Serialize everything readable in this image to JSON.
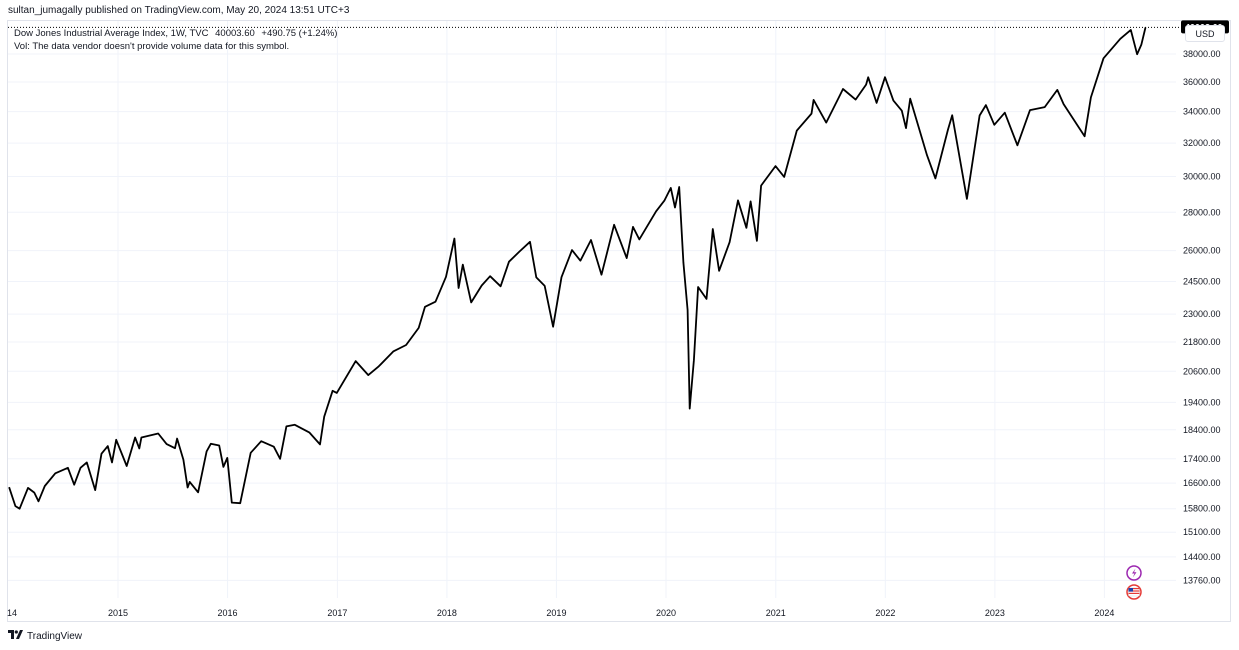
{
  "publisher_line": "sultan_jumagally published on TradingView.com, May 20, 2024 13:51 UTC+3",
  "legend": {
    "symbol_line": "Dow Jones Industrial Average Index, 1W, TVC",
    "last": "40003.60",
    "change": "+490.75 (+1.24%)",
    "volume_line": "Vol: The data vendor doesn't provide volume data for this symbol."
  },
  "currency_button": "USD",
  "footer_brand": "TradingView",
  "icons": {
    "lightning": "lightning-icon",
    "flag": "us-flag-icon",
    "logo": "tradingview-logo-icon"
  },
  "colors": {
    "line": "#000000",
    "grid": "#f0f3fa",
    "price_badge": "#000000"
  },
  "chart_data": {
    "type": "line",
    "scale": "log",
    "title": "Dow Jones Industrial Average Index, 1W, TVC",
    "xlabel": "",
    "ylabel": "",
    "x_ticks": [
      "14",
      "2015",
      "2016",
      "2017",
      "2018",
      "2019",
      "2020",
      "2021",
      "2022",
      "2023",
      "2024"
    ],
    "y_ticks": [
      "13760.00",
      "14400.00",
      "15100.00",
      "15800.00",
      "16600.00",
      "17400.00",
      "18400.00",
      "19400.00",
      "20600.00",
      "21800.00",
      "23000.00",
      "24500.00",
      "26000.00",
      "28000.00",
      "30000.00",
      "32000.00",
      "34000.00",
      "36000.00",
      "38000.00"
    ],
    "last_value_label": "40003.60",
    "ylim": [
      13300,
      40500
    ],
    "grid": true,
    "series": [
      {
        "values": [
          [
            "2014-01-03",
            16470
          ],
          [
            "2014-01-24",
            15880
          ],
          [
            "2014-02-07",
            15800
          ],
          [
            "2014-03-07",
            16450
          ],
          [
            "2014-03-28",
            16300
          ],
          [
            "2014-04-11",
            16030
          ],
          [
            "2014-05-02",
            16510
          ],
          [
            "2014-06-06",
            16920
          ],
          [
            "2014-07-18",
            17100
          ],
          [
            "2014-08-08",
            16550
          ],
          [
            "2014-08-29",
            17100
          ],
          [
            "2014-09-19",
            17280
          ],
          [
            "2014-10-17",
            16380
          ],
          [
            "2014-11-07",
            17570
          ],
          [
            "2014-11-28",
            17830
          ],
          [
            "2014-12-12",
            17280
          ],
          [
            "2014-12-26",
            18050
          ],
          [
            "2015-01-16",
            17510
          ],
          [
            "2015-01-30",
            17160
          ],
          [
            "2015-02-27",
            18130
          ],
          [
            "2015-03-13",
            17750
          ],
          [
            "2015-03-20",
            18130
          ],
          [
            "2015-05-15",
            18270
          ],
          [
            "2015-06-12",
            17900
          ],
          [
            "2015-07-10",
            17760
          ],
          [
            "2015-07-17",
            18090
          ],
          [
            "2015-08-07",
            17370
          ],
          [
            "2015-08-21",
            16460
          ],
          [
            "2015-08-28",
            16640
          ],
          [
            "2015-09-25",
            16310
          ],
          [
            "2015-10-23",
            17650
          ],
          [
            "2015-11-06",
            17910
          ],
          [
            "2015-12-04",
            17850
          ],
          [
            "2015-12-18",
            17130
          ],
          [
            "2015-12-31",
            17430
          ],
          [
            "2016-01-15",
            15990
          ],
          [
            "2016-02-12",
            15970
          ],
          [
            "2016-03-18",
            17600
          ],
          [
            "2016-04-22",
            18000
          ],
          [
            "2016-06-03",
            17810
          ],
          [
            "2016-06-24",
            17400
          ],
          [
            "2016-07-15",
            18520
          ],
          [
            "2016-08-12",
            18580
          ],
          [
            "2016-09-30",
            18300
          ],
          [
            "2016-11-04",
            17890
          ],
          [
            "2016-11-18",
            18870
          ],
          [
            "2016-12-16",
            19840
          ],
          [
            "2016-12-30",
            19760
          ],
          [
            "2017-03-03",
            21010
          ],
          [
            "2017-04-14",
            20450
          ],
          [
            "2017-05-19",
            20800
          ],
          [
            "2017-07-07",
            21410
          ],
          [
            "2017-08-18",
            21670
          ],
          [
            "2017-09-29",
            22400
          ],
          [
            "2017-10-20",
            23330
          ],
          [
            "2017-11-24",
            23560
          ],
          [
            "2017-12-29",
            24720
          ],
          [
            "2018-01-26",
            26610
          ],
          [
            "2018-02-09",
            24190
          ],
          [
            "2018-02-23",
            25310
          ],
          [
            "2018-03-23",
            23530
          ],
          [
            "2018-04-27",
            24310
          ],
          [
            "2018-05-25",
            24750
          ],
          [
            "2018-06-29",
            24270
          ],
          [
            "2018-07-27",
            25450
          ],
          [
            "2018-08-31",
            25960
          ],
          [
            "2018-10-05",
            26450
          ],
          [
            "2018-10-26",
            24690
          ],
          [
            "2018-11-23",
            24290
          ],
          [
            "2018-12-21",
            22450
          ],
          [
            "2019-01-18",
            24700
          ],
          [
            "2019-02-22",
            26030
          ],
          [
            "2019-03-22",
            25500
          ],
          [
            "2019-04-26",
            26540
          ],
          [
            "2019-05-31",
            24820
          ],
          [
            "2019-07-12",
            27330
          ],
          [
            "2019-08-23",
            25630
          ],
          [
            "2019-09-13",
            27220
          ],
          [
            "2019-10-04",
            26570
          ],
          [
            "2019-11-29",
            28050
          ],
          [
            "2019-12-27",
            28650
          ],
          [
            "2020-01-17",
            29350
          ],
          [
            "2020-01-31",
            28260
          ],
          [
            "2020-02-14",
            29400
          ],
          [
            "2020-02-28",
            25410
          ],
          [
            "2020-03-13",
            23190
          ],
          [
            "2020-03-20",
            19170
          ],
          [
            "2020-04-03",
            21050
          ],
          [
            "2020-04-17",
            24240
          ],
          [
            "2020-05-15",
            23690
          ],
          [
            "2020-06-05",
            27110
          ],
          [
            "2020-06-26",
            25010
          ],
          [
            "2020-07-31",
            26430
          ],
          [
            "2020-08-28",
            28650
          ],
          [
            "2020-09-25",
            27170
          ],
          [
            "2020-10-09",
            28590
          ],
          [
            "2020-10-30",
            26500
          ],
          [
            "2020-11-13",
            29480
          ],
          [
            "2020-12-31",
            30610
          ],
          [
            "2021-01-29",
            29980
          ],
          [
            "2021-03-12",
            32780
          ],
          [
            "2021-04-30",
            33870
          ],
          [
            "2021-05-07",
            34780
          ],
          [
            "2021-06-18",
            33290
          ],
          [
            "2021-07-30",
            34940
          ],
          [
            "2021-08-13",
            35520
          ],
          [
            "2021-09-24",
            34800
          ],
          [
            "2021-10-29",
            35820
          ],
          [
            "2021-11-05",
            36330
          ],
          [
            "2021-12-03",
            34580
          ],
          [
            "2021-12-31",
            36340
          ],
          [
            "2022-01-28",
            34730
          ],
          [
            "2022-02-25",
            34060
          ],
          [
            "2022-03-11",
            32940
          ],
          [
            "2022-03-25",
            34860
          ],
          [
            "2022-05-20",
            31260
          ],
          [
            "2022-06-17",
            29890
          ],
          [
            "2022-07-29",
            32850
          ],
          [
            "2022-08-12",
            33760
          ],
          [
            "2022-09-30",
            28730
          ],
          [
            "2022-11-11",
            33750
          ],
          [
            "2022-12-02",
            34430
          ],
          [
            "2022-12-30",
            33150
          ],
          [
            "2023-02-03",
            33930
          ],
          [
            "2023-03-17",
            31860
          ],
          [
            "2023-04-28",
            34100
          ],
          [
            "2023-06-16",
            34300
          ],
          [
            "2023-07-28",
            35460
          ],
          [
            "2023-08-18",
            34500
          ],
          [
            "2023-10-27",
            32420
          ],
          [
            "2023-11-17",
            34950
          ],
          [
            "2023-12-29",
            37690
          ],
          [
            "2024-02-23",
            39130
          ],
          [
            "2024-03-29",
            39810
          ],
          [
            "2024-04-19",
            37990
          ],
          [
            "2024-05-03",
            38680
          ],
          [
            "2024-05-17",
            40003.6
          ]
        ]
      }
    ]
  }
}
